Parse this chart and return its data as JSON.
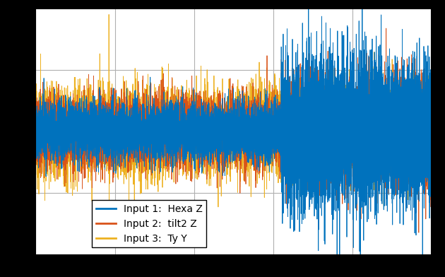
{
  "title": "",
  "xlabel": "",
  "ylabel": "",
  "legend_labels": [
    "Input 1:  Hexa Z",
    "Input 2:  tilt2 Z",
    "Input 3:  Ty Y"
  ],
  "line_colors": [
    "#0072BD",
    "#D95319",
    "#EDB120"
  ],
  "background_color": "#ffffff",
  "grid_color": "#b0b0b0",
  "n_points": 10000,
  "seed": 42,
  "ylim": [
    -4.0,
    4.0
  ],
  "xlim": [
    0,
    10000
  ],
  "figsize": [
    6.3,
    3.92
  ],
  "dpi": 100,
  "sig1_amp1": 0.45,
  "sig1_amp2": 1.2,
  "sig2_amp1": 0.55,
  "sig2_amp2": 0.85,
  "sig3_amp": 0.7,
  "spike_val_up": 3.8,
  "spike_val_down": -3.6,
  "transition": 0.62
}
